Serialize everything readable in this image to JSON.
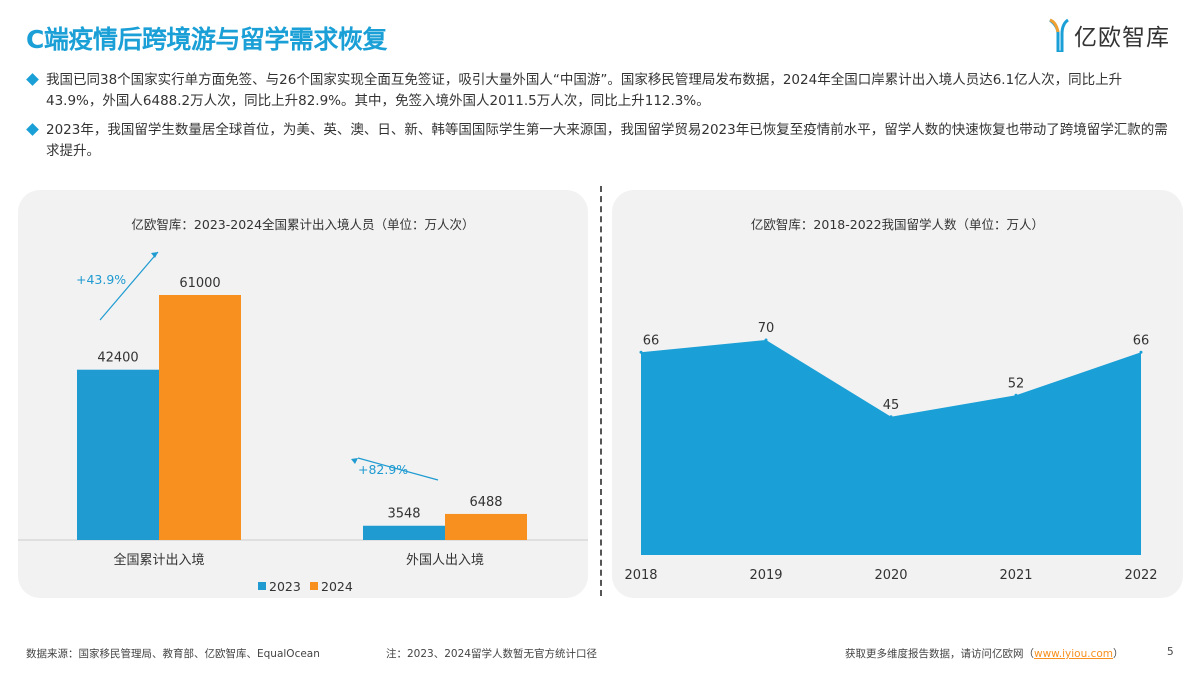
{
  "header": {
    "title": "C端疫情后跨境游与留学需求恢复",
    "logo_text": "亿欧智库"
  },
  "bullets": [
    "我国已同38个国家实行单方面免签、与26个国家实现全面互免签证，吸引大量外国人“中国游”。国家移民管理局发布数据，2024年全国口岸累计出入境人员达6.1亿人次，同比上升43.9%，外国人6488.2万人次，同比上升82.9%。其中，免签入境外国人2011.5万人次，同比上升112.3%。",
    "2023年，我国留学生数量居全球首位，为美、英、澳、日、新、韩等国国际学生第一大来源国，我国留学贸易2023年已恢复至疫情前水平，留学人数的快速恢复也带动了跨境留学汇款的需求提升。"
  ],
  "colors": {
    "accent": "#1a9fd6",
    "s2023": "#1f9bd1",
    "s2024": "#f7901e"
  },
  "chart_data": [
    {
      "type": "bar",
      "title": "亿欧智库：2023-2024全国累计出入境人员（单位：万人次）",
      "categories": [
        "全国累计出入境",
        "外国人出入境"
      ],
      "series": [
        {
          "name": "2023",
          "values": [
            42400,
            3548
          ]
        },
        {
          "name": "2024",
          "values": [
            61000,
            6488
          ]
        }
      ],
      "annotations": [
        "+43.9%",
        "+82.9%"
      ],
      "ylim": [
        0,
        61000
      ],
      "legend": "bottom",
      "grid": false
    },
    {
      "type": "area",
      "title": "亿欧智库：2018-2022我国留学人数（单位：万人）",
      "x": [
        "2018",
        "2019",
        "2020",
        "2021",
        "2022"
      ],
      "values": [
        66,
        70,
        45,
        52,
        66
      ],
      "ylim": [
        0,
        70
      ],
      "grid": false
    }
  ],
  "footer": {
    "source": "数据来源：国家移民管理局、教育部、亿欧智库、EqualOcean",
    "note": "注：2023、2024留学人数暂无官方统计口径",
    "more": "获取更多维度报告数据，请访问亿欧网（",
    "link": "www.iyiou.com",
    "close": "）",
    "page": "5"
  }
}
